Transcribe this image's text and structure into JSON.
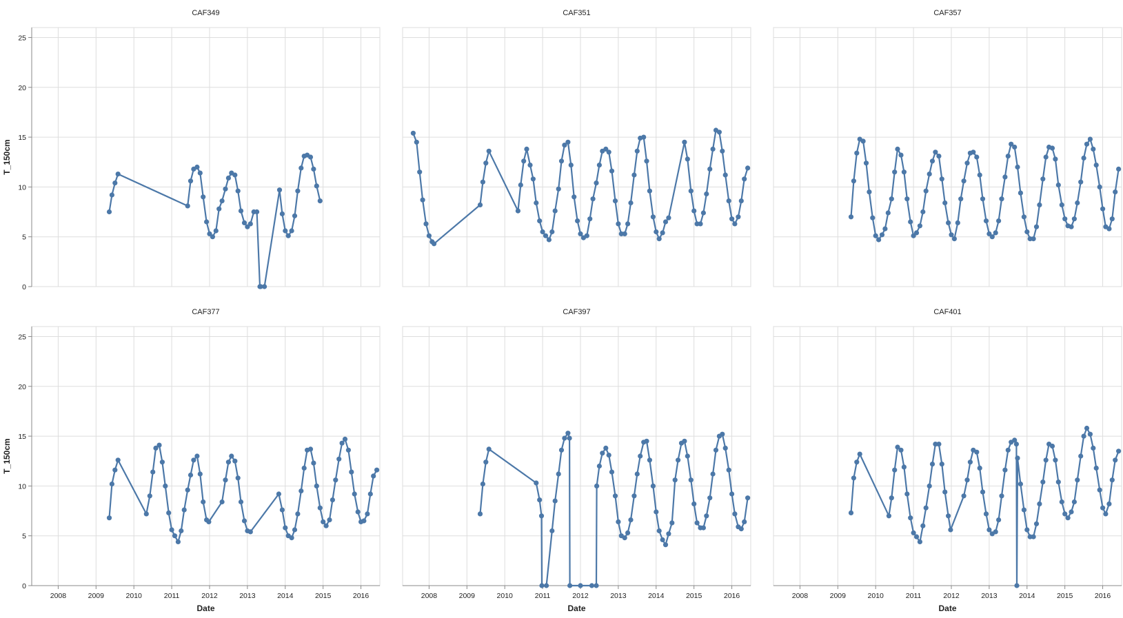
{
  "chart_data": {
    "type": "line",
    "layout": "faceted small multiples, 2 rows by 3 columns",
    "x_field": "Date",
    "y_field": "T_150cm",
    "xlabel": "Date",
    "ylabel": "T_150cm",
    "xlim": [
      "2007.3",
      "2016.5"
    ],
    "ylim": [
      0,
      26
    ],
    "x_ticks": [
      "2008",
      "2009",
      "2010",
      "2011",
      "2012",
      "2013",
      "2014",
      "2015",
      "2016"
    ],
    "y_ticks": [
      0,
      5,
      10,
      15,
      20,
      25
    ],
    "grid": true,
    "series_color": "#4c78a8",
    "x_unit": "decimal year",
    "panels": [
      {
        "name": "CAF349",
        "x": [
          2009.35,
          2009.42,
          2009.5,
          2009.58,
          2011.42,
          2011.5,
          2011.58,
          2011.67,
          2011.75,
          2011.83,
          2011.92,
          2012.0,
          2012.08,
          2012.17,
          2012.25,
          2012.33,
          2012.42,
          2012.5,
          2012.58,
          2012.67,
          2012.75,
          2012.83,
          2012.92,
          2013.0,
          2013.08,
          2013.17,
          2013.25,
          2013.33,
          2013.35,
          2013.45,
          2013.85,
          2013.92,
          2014.0,
          2014.08,
          2014.17,
          2014.25,
          2014.33,
          2014.42,
          2014.5,
          2014.58,
          2014.67,
          2014.75,
          2014.83,
          2014.92
        ],
        "y": [
          7.5,
          9.2,
          10.4,
          11.3,
          8.1,
          10.6,
          11.8,
          12.0,
          11.4,
          9.0,
          6.5,
          5.3,
          5.0,
          5.6,
          7.8,
          8.6,
          9.8,
          10.9,
          11.4,
          11.2,
          9.6,
          7.6,
          6.4,
          6.0,
          6.3,
          7.5,
          7.5,
          0.0,
          0.0,
          0.0,
          9.7,
          7.3,
          5.6,
          5.1,
          5.6,
          7.1,
          9.6,
          11.9,
          13.1,
          13.2,
          13.0,
          11.8,
          10.1,
          8.6
        ]
      },
      {
        "name": "CAF351",
        "x": [
          2007.58,
          2007.67,
          2007.75,
          2007.83,
          2007.92,
          2008.0,
          2008.08,
          2008.13,
          2009.35,
          2009.42,
          2009.5,
          2009.58,
          2010.35,
          2010.42,
          2010.5,
          2010.58,
          2010.67,
          2010.75,
          2010.83,
          2010.92,
          2011.0,
          2011.08,
          2011.17,
          2011.25,
          2011.33,
          2011.42,
          2011.5,
          2011.58,
          2011.67,
          2011.75,
          2011.83,
          2011.92,
          2012.0,
          2012.08,
          2012.17,
          2012.25,
          2012.33,
          2012.42,
          2012.5,
          2012.58,
          2012.67,
          2012.75,
          2012.83,
          2012.92,
          2013.0,
          2013.08,
          2013.17,
          2013.25,
          2013.33,
          2013.42,
          2013.5,
          2013.58,
          2013.67,
          2013.75,
          2013.83,
          2013.92,
          2014.0,
          2014.08,
          2014.17,
          2014.25,
          2014.33,
          2014.75,
          2014.83,
          2014.92,
          2015.0,
          2015.08,
          2015.17,
          2015.25,
          2015.33,
          2015.42,
          2015.5,
          2015.58,
          2015.67,
          2015.75,
          2015.83,
          2015.92,
          2016.0,
          2016.08,
          2016.17,
          2016.25,
          2016.33,
          2016.42
        ],
        "y": [
          15.4,
          14.5,
          11.5,
          8.7,
          6.3,
          5.1,
          4.5,
          4.3,
          8.2,
          10.5,
          12.4,
          13.6,
          7.6,
          10.2,
          12.6,
          13.8,
          12.2,
          10.8,
          8.4,
          6.6,
          5.5,
          5.1,
          4.7,
          5.5,
          7.6,
          9.8,
          12.6,
          14.2,
          14.5,
          12.2,
          9.0,
          6.6,
          5.3,
          4.9,
          5.1,
          6.8,
          8.8,
          10.4,
          12.2,
          13.6,
          13.8,
          13.5,
          11.6,
          8.6,
          6.3,
          5.3,
          5.3,
          6.3,
          8.4,
          11.2,
          13.6,
          14.9,
          15.0,
          12.6,
          9.6,
          7.0,
          5.5,
          4.8,
          5.4,
          6.5,
          6.9,
          14.5,
          12.8,
          9.6,
          7.6,
          6.3,
          6.3,
          7.4,
          9.3,
          11.8,
          13.8,
          15.7,
          15.5,
          13.6,
          11.2,
          8.6,
          6.8,
          6.3,
          7.0,
          8.6,
          10.8,
          11.9
        ]
      },
      {
        "name": "CAF357",
        "x": [
          2009.35,
          2009.42,
          2009.5,
          2009.58,
          2009.67,
          2009.75,
          2009.83,
          2009.92,
          2010.0,
          2010.08,
          2010.17,
          2010.25,
          2010.33,
          2010.42,
          2010.5,
          2010.58,
          2010.67,
          2010.75,
          2010.83,
          2010.92,
          2011.0,
          2011.08,
          2011.17,
          2011.25,
          2011.33,
          2011.42,
          2011.5,
          2011.58,
          2011.67,
          2011.75,
          2011.83,
          2011.92,
          2012.0,
          2012.08,
          2012.17,
          2012.25,
          2012.33,
          2012.42,
          2012.5,
          2012.58,
          2012.67,
          2012.75,
          2012.83,
          2012.92,
          2013.0,
          2013.08,
          2013.17,
          2013.25,
          2013.33,
          2013.42,
          2013.5,
          2013.58,
          2013.67,
          2013.75,
          2013.83,
          2013.92,
          2014.0,
          2014.08,
          2014.17,
          2014.25,
          2014.33,
          2014.42,
          2014.5,
          2014.58,
          2014.67,
          2014.75,
          2014.83,
          2014.92,
          2015.0,
          2015.08,
          2015.17,
          2015.25,
          2015.33,
          2015.42,
          2015.5,
          2015.58,
          2015.67,
          2015.75,
          2015.83,
          2015.92,
          2016.0,
          2016.08,
          2016.17,
          2016.25,
          2016.33,
          2016.42
        ],
        "y": [
          7.0,
          10.6,
          13.4,
          14.8,
          14.6,
          12.4,
          9.5,
          6.9,
          5.1,
          4.7,
          5.2,
          5.8,
          7.4,
          8.8,
          11.5,
          13.8,
          13.2,
          11.5,
          8.8,
          6.5,
          5.1,
          5.4,
          6.1,
          7.5,
          9.6,
          11.3,
          12.6,
          13.5,
          13.1,
          10.8,
          8.4,
          6.4,
          5.2,
          4.8,
          6.4,
          8.8,
          10.6,
          12.4,
          13.4,
          13.5,
          13.0,
          11.2,
          8.8,
          6.6,
          5.3,
          5.0,
          5.4,
          6.6,
          8.8,
          11.0,
          13.1,
          14.3,
          14.0,
          12.0,
          9.4,
          7.0,
          5.5,
          4.8,
          4.8,
          6.0,
          8.2,
          10.8,
          13.0,
          14.0,
          13.9,
          12.8,
          10.2,
          8.2,
          6.8,
          6.1,
          6.0,
          6.8,
          8.4,
          10.5,
          12.9,
          14.3,
          14.8,
          13.8,
          12.2,
          10.0,
          7.8,
          6.0,
          5.8,
          6.8,
          9.5,
          11.8
        ]
      },
      {
        "name": "CAF377",
        "x": [
          2009.35,
          2009.42,
          2009.5,
          2009.58,
          2010.33,
          2010.42,
          2010.5,
          2010.58,
          2010.67,
          2010.75,
          2010.83,
          2010.92,
          2011.0,
          2011.08,
          2011.17,
          2011.25,
          2011.33,
          2011.42,
          2011.5,
          2011.58,
          2011.67,
          2011.75,
          2011.83,
          2011.92,
          2011.98,
          2012.33,
          2012.42,
          2012.5,
          2012.58,
          2012.67,
          2012.75,
          2012.83,
          2012.92,
          2013.0,
          2013.08,
          2013.83,
          2013.92,
          2014.0,
          2014.08,
          2014.17,
          2014.25,
          2014.33,
          2014.42,
          2014.5,
          2014.58,
          2014.67,
          2014.75,
          2014.83,
          2014.92,
          2015.0,
          2015.08,
          2015.17,
          2015.25,
          2015.33,
          2015.42,
          2015.5,
          2015.58,
          2015.67,
          2015.75,
          2015.83,
          2015.92,
          2016.0,
          2016.08,
          2016.17,
          2016.25,
          2016.33,
          2016.42
        ],
        "y": [
          6.8,
          10.2,
          11.6,
          12.6,
          7.2,
          9.0,
          11.4,
          13.8,
          14.1,
          12.4,
          10.0,
          7.3,
          5.6,
          5.0,
          4.4,
          5.5,
          7.6,
          9.6,
          11.1,
          12.6,
          13.0,
          11.2,
          8.4,
          6.6,
          6.4,
          8.4,
          10.6,
          12.4,
          13.0,
          12.5,
          10.8,
          8.4,
          6.5,
          5.5,
          5.4,
          9.2,
          7.6,
          5.8,
          5.0,
          4.8,
          5.6,
          7.2,
          9.5,
          11.8,
          13.6,
          13.7,
          12.3,
          10.0,
          7.8,
          6.4,
          6.0,
          6.6,
          8.6,
          10.6,
          12.7,
          14.3,
          14.7,
          13.6,
          11.4,
          9.2,
          7.4,
          6.4,
          6.5,
          7.2,
          9.2,
          11.0,
          11.6
        ]
      },
      {
        "name": "CAF397",
        "x": [
          2009.35,
          2009.42,
          2009.5,
          2009.58,
          2010.83,
          2010.92,
          2010.97,
          2010.98,
          2011.1,
          2011.25,
          2011.33,
          2011.42,
          2011.5,
          2011.58,
          2011.67,
          2011.71,
          2011.72,
          2012.0,
          2012.3,
          2012.42,
          2012.43,
          2012.5,
          2012.58,
          2012.67,
          2012.75,
          2012.83,
          2012.92,
          2013.0,
          2013.08,
          2013.17,
          2013.25,
          2013.33,
          2013.42,
          2013.5,
          2013.58,
          2013.67,
          2013.75,
          2013.83,
          2013.92,
          2014.0,
          2014.08,
          2014.17,
          2014.25,
          2014.33,
          2014.42,
          2014.5,
          2014.58,
          2014.67,
          2014.75,
          2014.83,
          2014.92,
          2015.0,
          2015.08,
          2015.17,
          2015.25,
          2015.33,
          2015.42,
          2015.5,
          2015.58,
          2015.67,
          2015.75,
          2015.83,
          2015.92,
          2016.0,
          2016.08,
          2016.17,
          2016.25,
          2016.33,
          2016.42
        ],
        "y": [
          7.2,
          10.2,
          12.4,
          13.7,
          10.3,
          8.6,
          7.0,
          0.0,
          0.0,
          5.5,
          8.5,
          11.2,
          13.6,
          14.8,
          15.3,
          14.8,
          0.0,
          0.0,
          0.0,
          0.0,
          10.0,
          12.0,
          13.3,
          13.8,
          13.1,
          11.4,
          9.0,
          6.4,
          5.0,
          4.8,
          5.3,
          6.6,
          9.0,
          11.2,
          13.0,
          14.4,
          14.5,
          12.6,
          10.0,
          7.4,
          5.5,
          4.6,
          4.1,
          5.2,
          6.3,
          10.6,
          12.6,
          14.3,
          14.5,
          13.0,
          10.6,
          8.2,
          6.3,
          5.8,
          5.8,
          7.0,
          8.8,
          11.2,
          13.6,
          15.0,
          15.2,
          13.8,
          11.6,
          9.2,
          7.2,
          5.9,
          5.7,
          6.4,
          8.8
        ]
      },
      {
        "name": "CAF401",
        "x": [
          2009.35,
          2009.42,
          2009.5,
          2009.58,
          2010.35,
          2010.42,
          2010.5,
          2010.58,
          2010.67,
          2010.75,
          2010.83,
          2010.92,
          2011.0,
          2011.08,
          2011.17,
          2011.25,
          2011.33,
          2011.42,
          2011.5,
          2011.58,
          2011.67,
          2011.75,
          2011.83,
          2011.92,
          2011.98,
          2012.33,
          2012.42,
          2012.5,
          2012.58,
          2012.67,
          2012.75,
          2012.83,
          2012.92,
          2013.0,
          2013.08,
          2013.17,
          2013.25,
          2013.33,
          2013.42,
          2013.5,
          2013.58,
          2013.67,
          2013.72,
          2013.73,
          2013.75,
          2013.83,
          2013.92,
          2014.0,
          2014.08,
          2014.17,
          2014.25,
          2014.33,
          2014.42,
          2014.5,
          2014.58,
          2014.67,
          2014.75,
          2014.83,
          2014.92,
          2015.0,
          2015.08,
          2015.17,
          2015.25,
          2015.33,
          2015.42,
          2015.5,
          2015.58,
          2015.67,
          2015.75,
          2015.83,
          2015.92,
          2016.0,
          2016.08,
          2016.17,
          2016.25,
          2016.33,
          2016.42
        ],
        "y": [
          7.3,
          10.8,
          12.4,
          13.2,
          7.0,
          8.8,
          11.6,
          13.9,
          13.6,
          11.9,
          9.2,
          6.8,
          5.3,
          4.9,
          4.4,
          6.0,
          7.8,
          10.0,
          12.2,
          14.2,
          14.2,
          12.2,
          9.4,
          7.0,
          5.6,
          9.0,
          10.6,
          12.4,
          13.6,
          13.4,
          11.8,
          9.4,
          7.2,
          5.6,
          5.2,
          5.4,
          6.6,
          9.0,
          11.6,
          13.6,
          14.4,
          14.6,
          14.2,
          0.0,
          12.8,
          10.2,
          7.6,
          5.6,
          4.9,
          4.9,
          6.2,
          8.2,
          10.4,
          12.6,
          14.2,
          14.0,
          12.6,
          10.4,
          8.4,
          7.2,
          6.8,
          7.4,
          8.4,
          10.6,
          13.0,
          15.0,
          15.8,
          15.2,
          13.8,
          11.8,
          9.6,
          7.8,
          7.2,
          8.2,
          10.6,
          12.6,
          13.5
        ]
      }
    ]
  }
}
